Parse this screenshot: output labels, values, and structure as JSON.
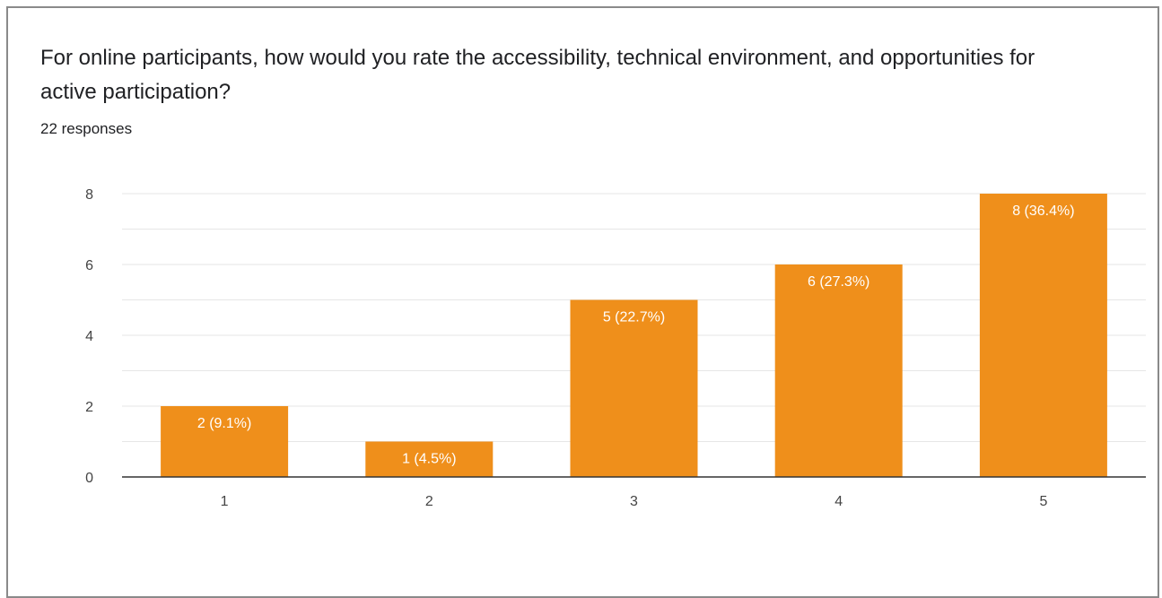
{
  "question": {
    "title": "For online participants, how would you rate the accessibility, technical environment, and opportunities for active participation?",
    "responses": "22 responses"
  },
  "colors": {
    "bar": "#ef8f1b",
    "grid": "#e6e6e6",
    "axis": "#333333"
  },
  "chart_data": {
    "type": "bar",
    "categories": [
      "1",
      "2",
      "3",
      "4",
      "5"
    ],
    "values": [
      2,
      1,
      5,
      6,
      8
    ],
    "data_labels": [
      "2 (9.1%)",
      "1 (4.5%)",
      "5 (22.7%)",
      "6 (27.3%)",
      "8 (36.4%)"
    ],
    "y_ticks": [
      "0",
      "2",
      "4",
      "6",
      "8"
    ],
    "ylim": [
      0,
      8
    ],
    "title": "For online participants, how would you rate the accessibility, technical environment, and opportunities for active participation?",
    "xlabel": "",
    "ylabel": "",
    "grid": true,
    "legend": "none"
  }
}
